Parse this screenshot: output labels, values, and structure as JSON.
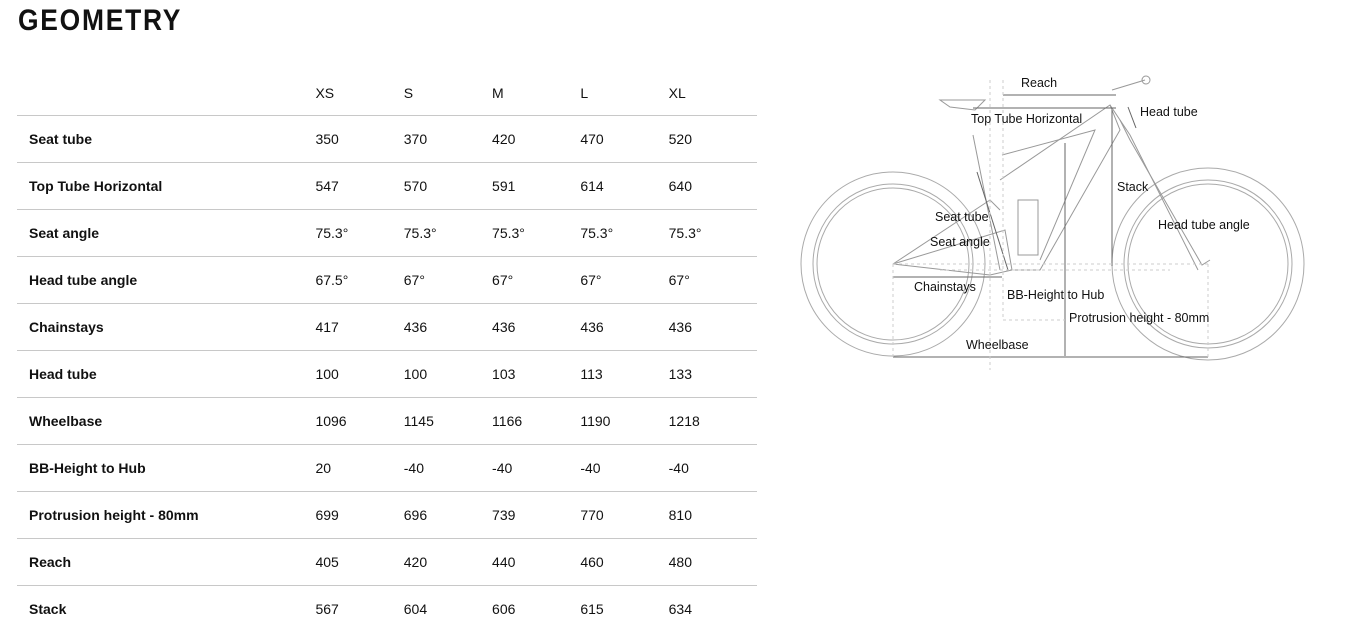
{
  "title": "GEOMETRY",
  "table": {
    "sizes": [
      "XS",
      "S",
      "M",
      "L",
      "XL"
    ],
    "rows": [
      {
        "label": "Seat tube",
        "values": [
          "350",
          "370",
          "420",
          "470",
          "520"
        ]
      },
      {
        "label": "Top Tube Horizontal",
        "values": [
          "547",
          "570",
          "591",
          "614",
          "640"
        ]
      },
      {
        "label": "Seat angle",
        "values": [
          "75.3°",
          "75.3°",
          "75.3°",
          "75.3°",
          "75.3°"
        ]
      },
      {
        "label": "Head tube angle",
        "values": [
          "67.5°",
          "67°",
          "67°",
          "67°",
          "67°"
        ]
      },
      {
        "label": "Chainstays",
        "values": [
          "417",
          "436",
          "436",
          "436",
          "436"
        ]
      },
      {
        "label": "Head tube",
        "values": [
          "100",
          "100",
          "103",
          "113",
          "133"
        ]
      },
      {
        "label": "Wheelbase",
        "values": [
          "1096",
          "1145",
          "1166",
          "1190",
          "1218"
        ]
      },
      {
        "label": "BB-Height to Hub",
        "values": [
          "20",
          "-40",
          "-40",
          "-40",
          "-40"
        ]
      },
      {
        "label": "Protrusion height - 80mm",
        "values": [
          "699",
          "696",
          "739",
          "770",
          "810"
        ]
      },
      {
        "label": "Reach",
        "values": [
          "405",
          "420",
          "440",
          "460",
          "480"
        ]
      },
      {
        "label": "Stack",
        "values": [
          "567",
          "604",
          "606",
          "615",
          "634"
        ]
      }
    ]
  },
  "diagram": {
    "labels": {
      "reach": "Reach",
      "top_tube": "Top Tube Horizontal",
      "head_tube": "Head tube",
      "stack": "Stack",
      "seat_tube": "Seat tube",
      "seat_angle": "Seat angle",
      "head_tube_angle": "Head tube angle",
      "chainstays": "Chainstays",
      "bb_height": "BB-Height to Hub",
      "protrusion": "Protrusion height - 80mm",
      "wheelbase": "Wheelbase"
    }
  }
}
